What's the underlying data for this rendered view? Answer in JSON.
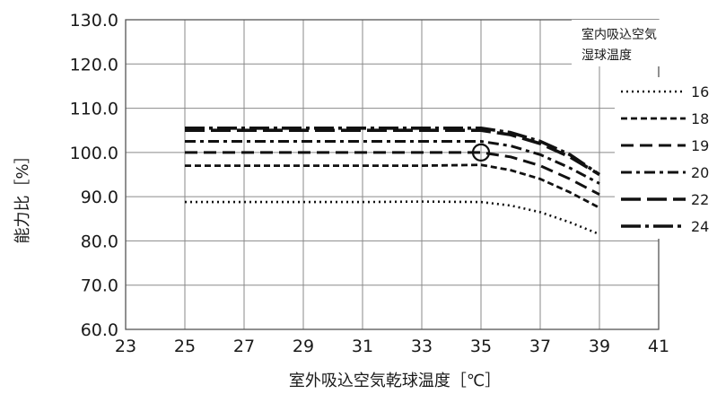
{
  "chart_data": {
    "type": "line",
    "title": "",
    "xlabel": "室外吸込空気乾球温度［℃］",
    "ylabel": "能力比［%］",
    "xlim": [
      23,
      41
    ],
    "ylim": [
      60,
      130
    ],
    "x_ticks": [
      "23",
      "25",
      "27",
      "29",
      "31",
      "33",
      "35",
      "37",
      "39",
      "41"
    ],
    "y_ticks": [
      "60.0",
      "70.0",
      "80.0",
      "90.0",
      "100.0",
      "110.0",
      "120.0",
      "130.0"
    ],
    "grid": true,
    "legend": {
      "title_lines": [
        "室内吸込空気",
        "湿球温度"
      ],
      "placement": "right"
    },
    "marker": {
      "x": 35,
      "y": 100,
      "shape": "circle"
    },
    "series": [
      {
        "name": "16",
        "style": "dotted",
        "x": [
          25,
          27,
          29,
          31,
          33,
          35,
          36,
          37,
          38,
          39
        ],
        "y": [
          88.8,
          88.8,
          88.8,
          88.8,
          88.9,
          88.8,
          88.0,
          86.5,
          84.2,
          81.5
        ]
      },
      {
        "name": "18",
        "style": "short-dash",
        "x": [
          25,
          27,
          29,
          31,
          33,
          35,
          36,
          37,
          38,
          39
        ],
        "y": [
          97.0,
          97.0,
          97.0,
          97.0,
          97.0,
          97.2,
          96.0,
          94.0,
          91.0,
          87.5
        ]
      },
      {
        "name": "19",
        "style": "dash",
        "x": [
          25,
          27,
          29,
          31,
          33,
          35,
          36,
          37,
          38,
          39
        ],
        "y": [
          100.0,
          100.0,
          100.0,
          100.0,
          100.0,
          100.0,
          99.0,
          97.0,
          94.0,
          90.5
        ]
      },
      {
        "name": "20",
        "style": "dash-dot",
        "x": [
          25,
          27,
          29,
          31,
          33,
          35,
          36,
          37,
          38,
          39
        ],
        "y": [
          102.5,
          102.5,
          102.5,
          102.5,
          102.5,
          102.5,
          101.5,
          99.5,
          96.5,
          93.0
        ]
      },
      {
        "name": "22",
        "style": "long-dash",
        "x": [
          25,
          27,
          29,
          31,
          33,
          35,
          36,
          37,
          38,
          39
        ],
        "y": [
          105.0,
          105.0,
          105.0,
          105.0,
          105.0,
          105.0,
          104.0,
          102.0,
          99.0,
          95.0
        ]
      },
      {
        "name": "24",
        "style": "long-dash-dot",
        "x": [
          25,
          27,
          29,
          31,
          33,
          35,
          36,
          37,
          38,
          39
        ],
        "y": [
          105.5,
          105.5,
          105.5,
          105.5,
          105.5,
          105.5,
          104.5,
          102.5,
          99.5,
          95.0
        ]
      }
    ]
  }
}
